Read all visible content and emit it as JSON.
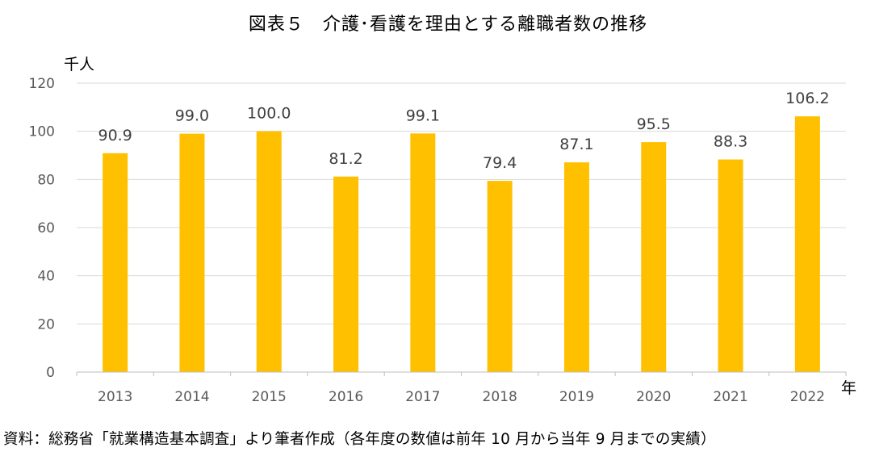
{
  "title": "図表５　介護･看護を理由とする離職者数の推移",
  "source": "資料：総務省「就業構造基本調査」より筆者作成（各年度の数値は前年 10 月から当年 9 月までの実績）",
  "colors": {
    "bar": "#FFC000",
    "grid": "#D9D9D9",
    "axis": "#BFBFBF",
    "text": "#595959"
  },
  "chart_data": {
    "type": "bar",
    "title": "図表５　介護･看護を理由とする離職者数の推移",
    "ylabel": "千人",
    "xlabel": "年",
    "categories": [
      "2013",
      "2014",
      "2015",
      "2016",
      "2017",
      "2018",
      "2019",
      "2020",
      "2021",
      "2022"
    ],
    "values": [
      90.9,
      99.0,
      100.0,
      81.2,
      99.1,
      79.4,
      87.1,
      95.5,
      88.3,
      106.2
    ],
    "data_labels": [
      "90.9",
      "99.0",
      "100.0",
      "81.2",
      "99.1",
      "79.4",
      "87.1",
      "95.5",
      "88.3",
      "106.2"
    ],
    "ylim": [
      0,
      120
    ],
    "yticks": [
      "0",
      "20",
      "40",
      "60",
      "80",
      "100",
      "120"
    ],
    "grid": true,
    "legend": "none"
  }
}
